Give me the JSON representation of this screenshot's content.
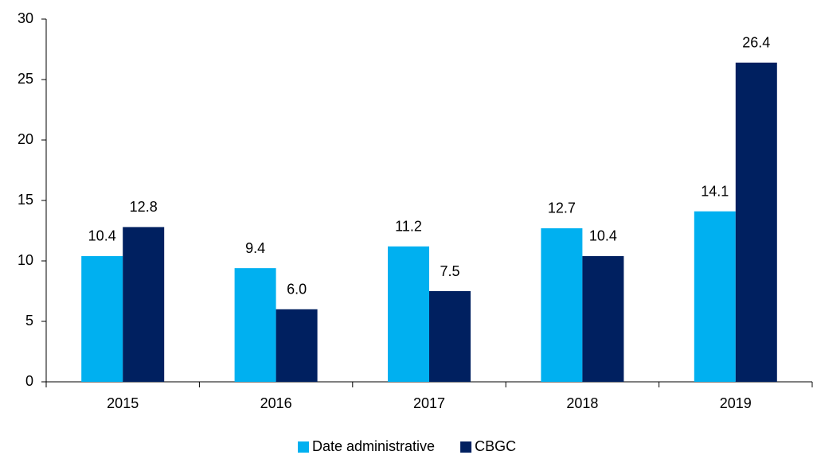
{
  "chart_data": {
    "type": "bar",
    "categories": [
      "2015",
      "2016",
      "2017",
      "2018",
      "2019"
    ],
    "series": [
      {
        "name": "Date administrative",
        "color": "#00b0f0",
        "values": [
          10.4,
          9.4,
          11.2,
          12.7,
          14.1
        ],
        "value_labels": [
          "10.4",
          "9.4",
          "11.2",
          "12.7",
          "14.1"
        ]
      },
      {
        "name": "CBGC",
        "color": "#002060",
        "values": [
          12.8,
          6.0,
          7.5,
          10.4,
          26.4
        ],
        "value_labels": [
          "12.8",
          "6.0",
          "7.5",
          "10.4",
          "26.4"
        ]
      }
    ],
    "ylim": [
      0,
      30
    ],
    "yticks": [
      0,
      5,
      10,
      15,
      20,
      25,
      30
    ],
    "grid": false,
    "legend": "bottom"
  }
}
